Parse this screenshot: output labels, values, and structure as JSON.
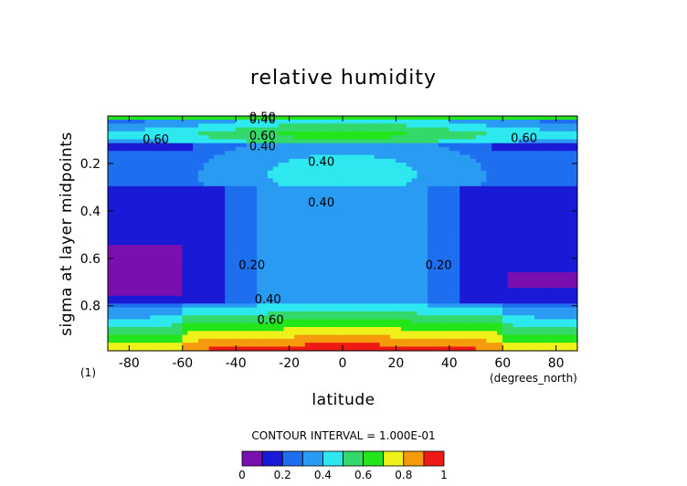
{
  "chart_data": {
    "type": "heatmap",
    "title": "relative humidity",
    "xlabel": "latitude",
    "ylabel": "sigma at layer midpoints",
    "x_unit_label": "(degrees_north)",
    "panel_label": "(1)",
    "xlim": [
      -88,
      88
    ],
    "ylim_top": 0.0,
    "ylim_bottom": 0.99,
    "x_ticks": [
      -80,
      -60,
      -40,
      -20,
      0,
      20,
      40,
      60,
      80
    ],
    "x_tick_labels": [
      "-80",
      "-60",
      "-40",
      "-20",
      "0",
      "20",
      "40",
      "60",
      "80"
    ],
    "y_ticks": [
      0.2,
      0.4,
      0.6,
      0.8
    ],
    "y_tick_labels": [
      "0.2",
      "0.4",
      "0.6",
      "0.8"
    ],
    "contour_interval_text": "CONTOUR INTERVAL = 1.000E-01",
    "colorbar": {
      "levels": [
        0,
        0.1,
        0.2,
        0.3,
        0.4,
        0.5,
        0.6,
        0.7,
        0.8,
        0.9,
        1.0
      ],
      "colors": [
        "#7a0fb0",
        "#1a1ad6",
        "#1e6ef0",
        "#2a9bf2",
        "#2ee8f0",
        "#33d96b",
        "#22e61a",
        "#eef21a",
        "#f59a0b",
        "#ee1a16"
      ],
      "tick_values": [
        0,
        0.2,
        0.4,
        0.6,
        0.8,
        1
      ],
      "tick_labels": [
        "0",
        "0.2",
        "0.4",
        "0.6",
        "0.8",
        "1"
      ]
    },
    "contour_labels": [
      {
        "text": "0.60",
        "lat": -70,
        "sigma": 0.1
      },
      {
        "text": "0.60",
        "lat": 68,
        "sigma": 0.095
      },
      {
        "text": "0.40",
        "lat": -30,
        "sigma": 0.015
      },
      {
        "text": "0.50",
        "lat": -30,
        "sigma": 0.005
      },
      {
        "text": "0.60",
        "lat": -30,
        "sigma": 0.085
      },
      {
        "text": "0.40",
        "lat": -30,
        "sigma": 0.13
      },
      {
        "text": "0.40",
        "lat": -8,
        "sigma": 0.195
      },
      {
        "text": "0.40",
        "lat": -8,
        "sigma": 0.365
      },
      {
        "text": "0.20",
        "lat": -34,
        "sigma": 0.63
      },
      {
        "text": "0.20",
        "lat": 36,
        "sigma": 0.63
      },
      {
        "text": "0.40",
        "lat": -28,
        "sigma": 0.775
      },
      {
        "text": "0.60",
        "lat": -27,
        "sigma": 0.86
      }
    ]
  }
}
